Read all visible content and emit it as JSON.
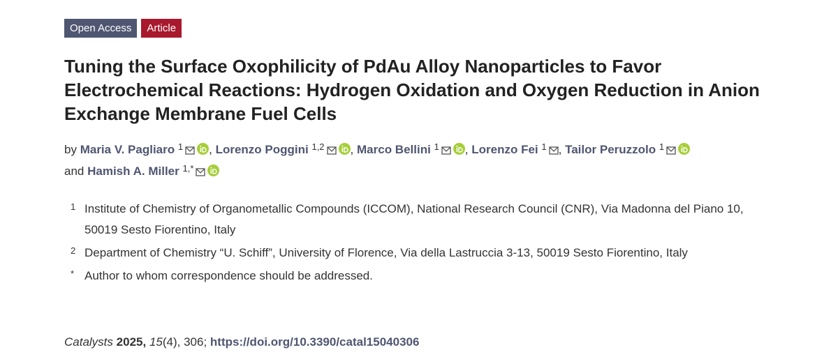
{
  "badges": [
    "Open Access",
    "Article"
  ],
  "title": "Tuning the Surface Oxophilicity of PdAu Alloy Nanoparticles to Favor Electrochemical Reactions: Hydrogen Oxidation and Oxygen Reduction in Anion Exchange Membrane Fuel Cells",
  "authors": {
    "prefix": "by",
    "conjunction": "and",
    "list": [
      {
        "name": "Maria V. Pagliaro",
        "sup": "1",
        "orcid": true,
        "sep": ","
      },
      {
        "name": "Lorenzo Poggini",
        "sup": "1,2",
        "orcid": true,
        "sep": ","
      },
      {
        "name": "Marco Bellini",
        "sup": "1",
        "orcid": true,
        "sep": ","
      },
      {
        "name": "Lorenzo Fei",
        "sup": "1",
        "orcid": false,
        "sep": ","
      },
      {
        "name": "Tailor Peruzzolo",
        "sup": "1",
        "orcid": true
      },
      {
        "name": "Hamish A. Miller",
        "sup": "1,*",
        "orcid": true
      }
    ]
  },
  "affiliations": [
    {
      "mark": "1",
      "text": "Institute of Chemistry of Organometallic Compounds (ICCOM), National Research Council (CNR), Via Madonna del Piano 10, 50019 Sesto Fiorentino, Italy"
    },
    {
      "mark": "2",
      "text": "Department of Chemistry “U. Schiff”, University of Florence, Via della Lastruccia 3-13, 50019 Sesto Fiorentino, Italy"
    },
    {
      "mark": "*",
      "text": "Author to whom correspondence should be addressed."
    }
  ],
  "citation": {
    "journal": "Catalysts",
    "year": "2025,",
    "volume": "15",
    "rest": "(4), 306;",
    "doi": "https://doi.org/10.3390/catal15040306"
  }
}
